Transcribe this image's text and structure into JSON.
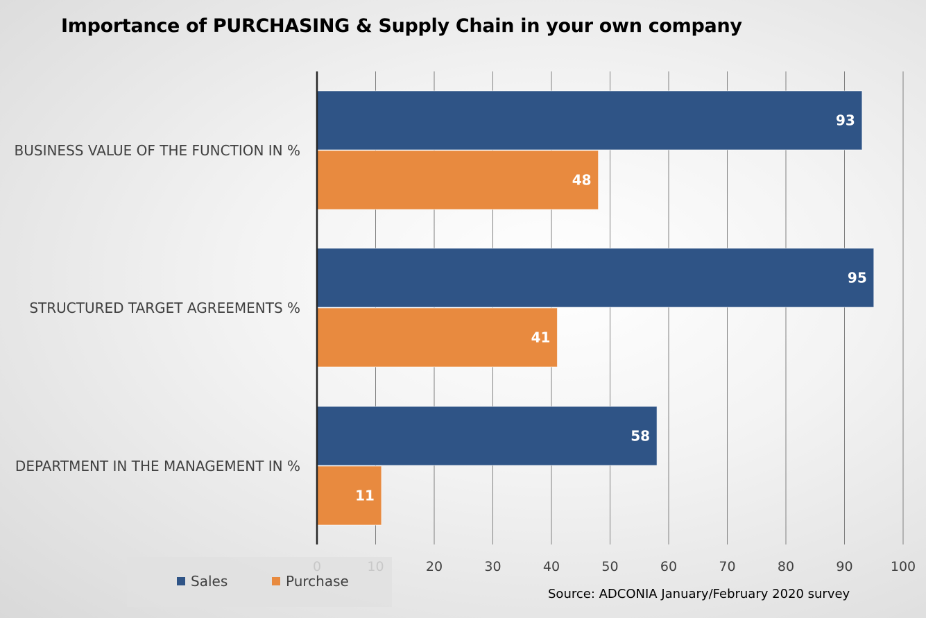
{
  "title": "Importance of PURCHASING & Supply Chain in your own company",
  "source": "Source: ADCONIA January/February 2020 survey",
  "colors": {
    "sales": "#2f5486",
    "purchase": "#e88a3f",
    "axis": "#262626"
  },
  "chart_data": {
    "type": "bar",
    "orientation": "horizontal",
    "categories": [
      "BUSINESS VALUE OF THE FUNCTION IN %",
      "STRUCTURED TARGET AGREEMENTS %",
      "DEPARTMENT IN THE MANAGEMENT IN %"
    ],
    "series": [
      {
        "name": "Sales",
        "values": [
          93,
          95,
          58
        ]
      },
      {
        "name": "Purchase",
        "values": [
          48,
          41,
          11
        ]
      }
    ],
    "xlim": [
      0,
      100
    ],
    "xticks": [
      "0",
      "10",
      "20",
      "30",
      "40",
      "50",
      "60",
      "70",
      "80",
      "90",
      "100"
    ],
    "grid": true,
    "legend_position": "bottom-left",
    "data_labels": true
  }
}
